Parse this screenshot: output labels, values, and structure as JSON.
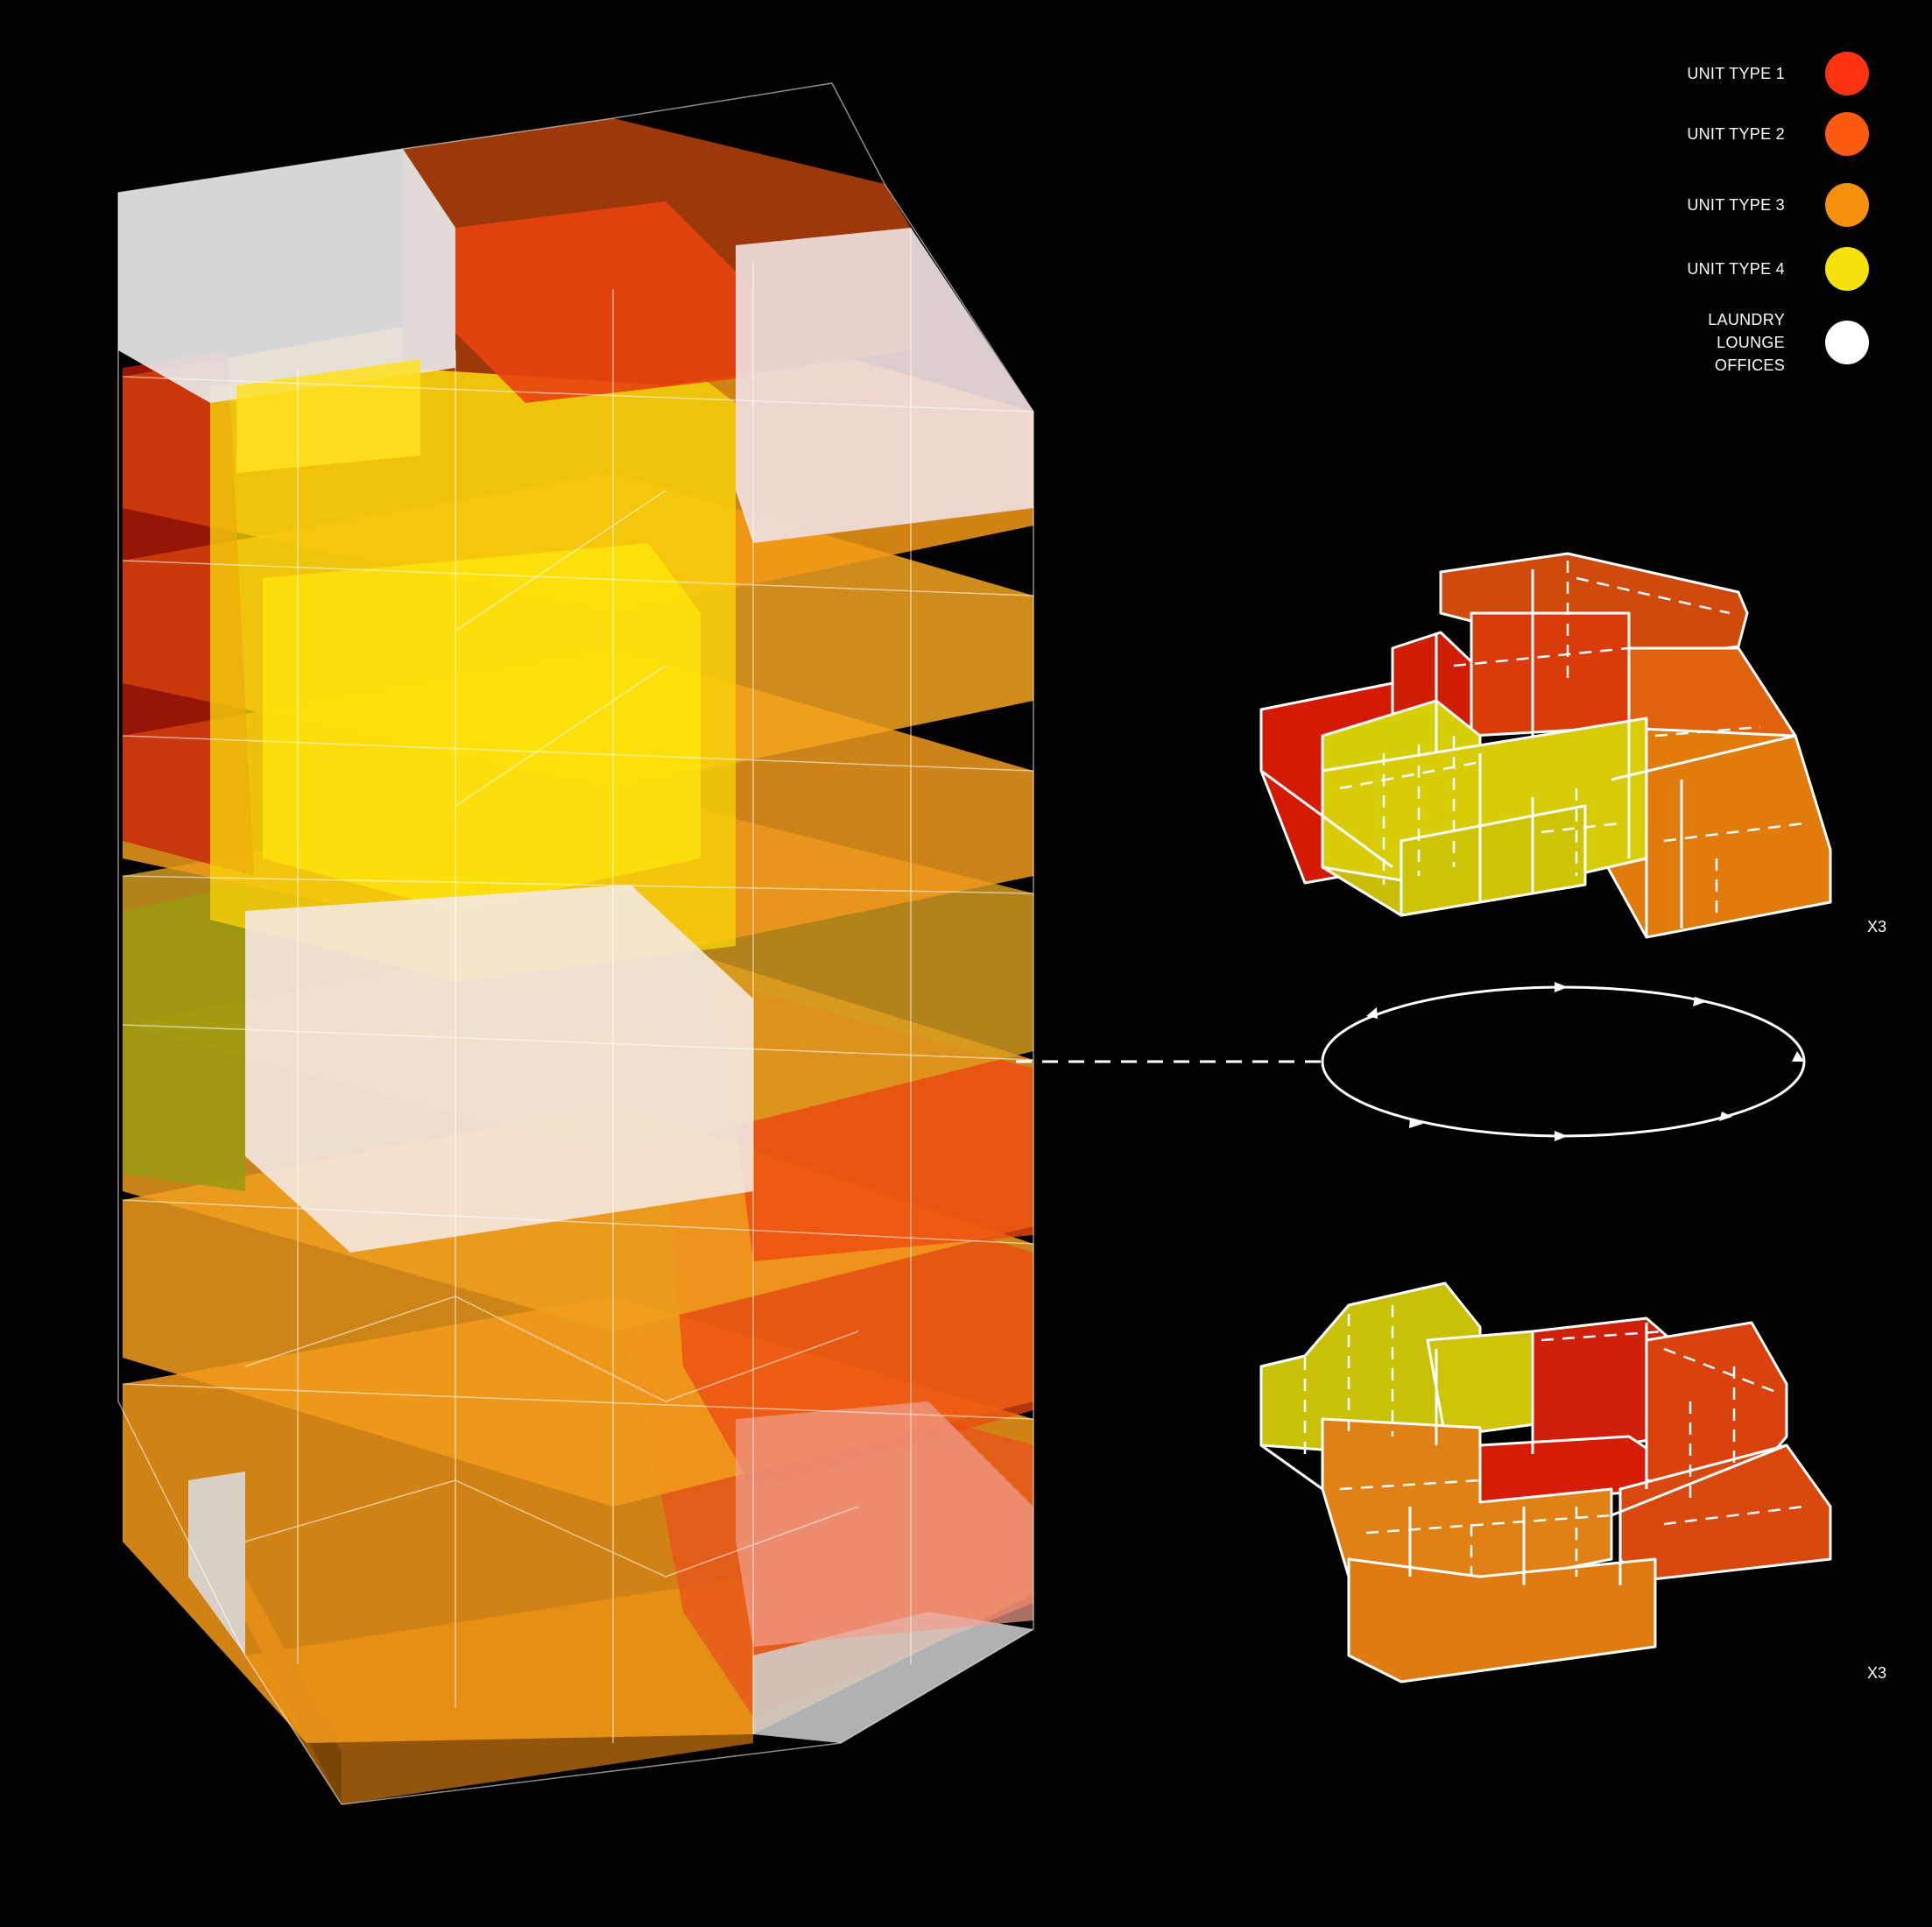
{
  "legend": {
    "items": [
      {
        "label": "UNIT TYPE 1",
        "color": "#ff3311"
      },
      {
        "label": "UNIT TYPE 2",
        "color": "#ff5a12"
      },
      {
        "label": "UNIT TYPE 3",
        "color": "#f5900c"
      },
      {
        "label": "UNIT TYPE 4",
        "color": "#f5e20a"
      },
      {
        "label": "LAUNDRY\nLOUNGE\nOFFICES",
        "color": "#ffffff"
      }
    ]
  },
  "plans": {
    "upper_multiplier": "X3",
    "lower_multiplier": "X3"
  }
}
